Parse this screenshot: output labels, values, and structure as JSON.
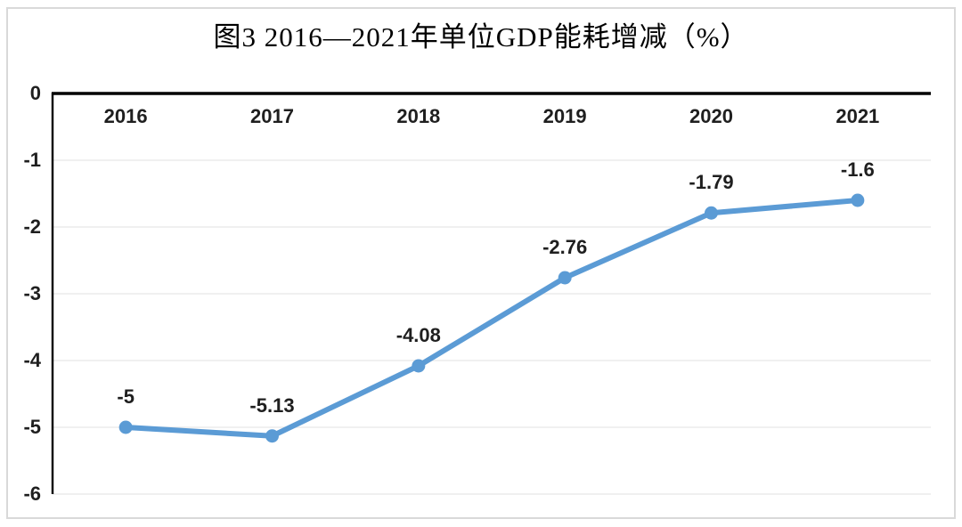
{
  "page": {
    "background": "#ffffff",
    "frame_border_color": "#d9d9d9"
  },
  "chart_data": {
    "type": "line",
    "title": "图3 2016—2021年单位GDP能耗增减（%）",
    "categories": [
      "2016",
      "2017",
      "2018",
      "2019",
      "2020",
      "2021"
    ],
    "series": [
      {
        "values": [
          -5,
          -5.13,
          -4.08,
          -2.76,
          -1.79,
          -1.6
        ],
        "data_labels": [
          "-5",
          "-5.13",
          "-4.08",
          "-2.76",
          "-1.79",
          "-1.6"
        ],
        "color": "#5B9BD5"
      }
    ],
    "ylim": [
      -6,
      0
    ],
    "y_ticks": [
      "0",
      "-1",
      "-2",
      "-3",
      "-4",
      "-5",
      "-6"
    ],
    "xlabel": "",
    "ylabel": "",
    "grid": true,
    "gridline_color": "#ececec",
    "axis_color": "#000000",
    "legend_position": "none",
    "x_axis_position": "top-at-zero",
    "data_label_position": "above"
  }
}
